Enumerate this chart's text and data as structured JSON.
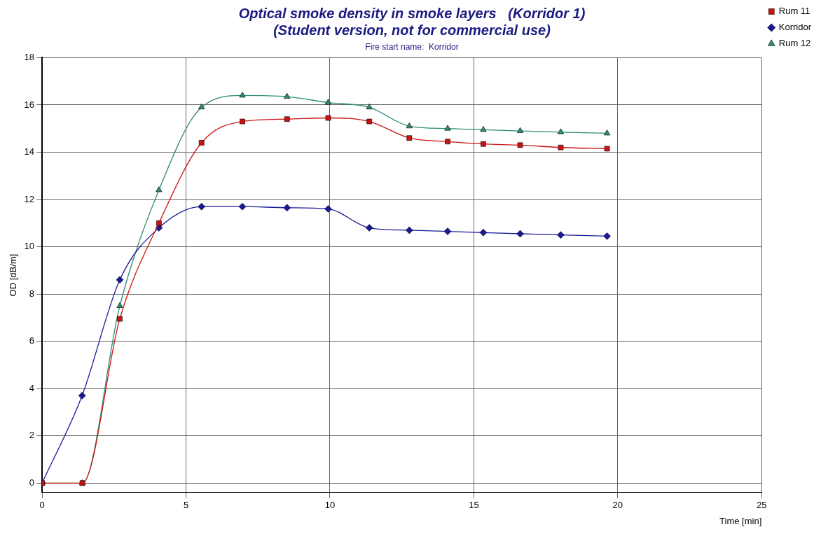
{
  "chart_data": {
    "type": "line",
    "title": "Optical smoke density in smoke layers   (Korridor 1)\n(Student version, not for commercial use)",
    "subtitle": "Fire start name:  Korridor",
    "xlabel": "Time [min]",
    "ylabel": "OD [dB/m]",
    "xlim": [
      0,
      25
    ],
    "xticks": [
      0,
      5,
      10,
      15,
      20,
      25
    ],
    "ylim": [
      -0.4,
      18
    ],
    "yticks": [
      0,
      2,
      4,
      6,
      8,
      10,
      12,
      14,
      16,
      18
    ],
    "grid": true,
    "legend": "top right",
    "line_style": "solid",
    "series": [
      {
        "name": "Rum 11",
        "color": "#cc1111",
        "marker": "square",
        "x": [
          0,
          1.4,
          2.7,
          4.06,
          5.54,
          6.96,
          8.51,
          9.94,
          11.37,
          12.76,
          14.09,
          15.33,
          16.61,
          18.02,
          19.63
        ],
        "values": [
          0,
          0,
          6.95,
          11.0,
          14.4,
          15.3,
          15.4,
          15.45,
          15.3,
          14.6,
          14.45,
          14.35,
          14.3,
          14.2,
          14.15
        ]
      },
      {
        "name": "Korridor",
        "color": "#1a1a99",
        "marker": "diamond",
        "x": [
          0,
          1.39,
          2.7,
          4.06,
          5.54,
          6.96,
          8.51,
          9.94,
          11.37,
          12.76,
          14.09,
          15.33,
          16.61,
          18.02,
          19.63
        ],
        "values": [
          0,
          3.7,
          8.6,
          10.8,
          11.7,
          11.7,
          11.65,
          11.6,
          10.8,
          10.7,
          10.65,
          10.6,
          10.55,
          10.5,
          10.45
        ]
      },
      {
        "name": "Rum 12",
        "color": "#2f8a78",
        "marker": "triangle",
        "x": [
          0,
          1.4,
          2.7,
          4.06,
          5.54,
          6.96,
          8.51,
          9.94,
          11.37,
          12.76,
          14.09,
          15.33,
          16.61,
          18.02,
          19.63
        ],
        "values": [
          0,
          0,
          7.5,
          12.4,
          15.9,
          16.4,
          16.35,
          16.1,
          15.9,
          15.1,
          15.0,
          14.95,
          14.9,
          14.85,
          14.8
        ]
      }
    ]
  }
}
